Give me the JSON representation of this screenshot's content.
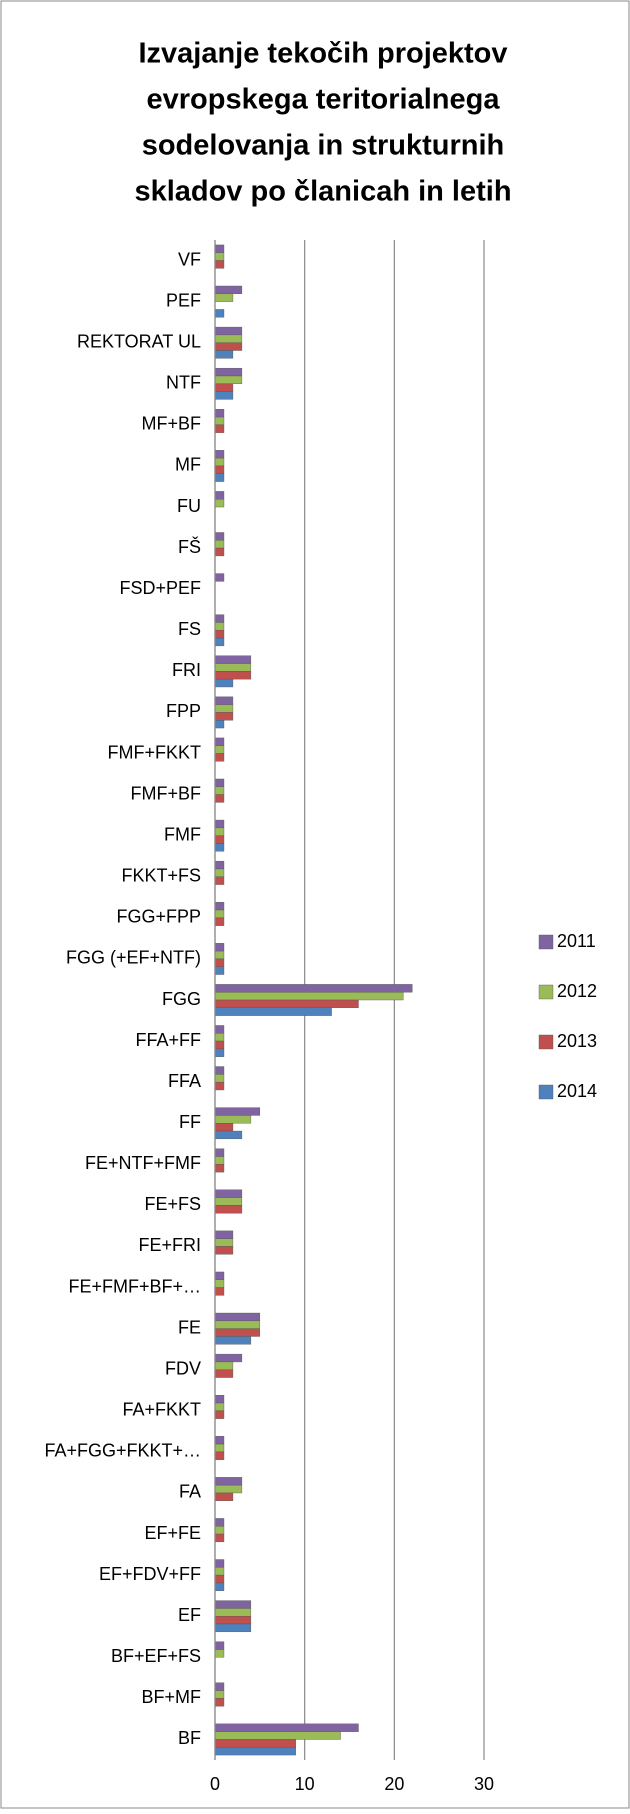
{
  "chart_data": {
    "type": "bar",
    "title": [
      "Izvajanje tekočih projektov",
      "evropskega teritorialnega",
      "sodelovanja in strukturnih",
      "skladov po članicah in letih"
    ],
    "categories": [
      "BF",
      "BF+MF",
      "BF+EF+FS",
      "EF",
      "EF+FDV+FF",
      "EF+FE",
      "FA",
      "FA+FGG+FKKT+…",
      "FA+FKKT",
      "FDV",
      "FE",
      "FE+FMF+BF+…",
      "FE+FRI",
      "FE+FS",
      "FE+NTF+FMF",
      "FF",
      "FFA",
      "FFA+FF",
      "FGG",
      "FGG (+EF+NTF)",
      "FGG+FPP",
      "FKKT+FS",
      "FMF",
      "FMF+BF",
      "FMF+FKKT",
      "FPP",
      "FRI",
      "FS",
      "FSD+PEF",
      "FŠ",
      "FU",
      "MF",
      "MF+BF",
      "NTF",
      "REKTORAT UL",
      "PEF",
      "VF"
    ],
    "series": [
      {
        "name": "2011",
        "color": "#8064a2",
        "values": [
          16,
          1,
          1,
          4,
          1,
          1,
          3,
          1,
          1,
          3,
          5,
          1,
          2,
          3,
          1,
          5,
          1,
          1,
          22,
          1,
          1,
          1,
          1,
          1,
          1,
          2,
          4,
          1,
          1,
          1,
          1,
          1,
          1,
          3,
          3,
          3,
          1
        ]
      },
      {
        "name": "2012",
        "color": "#9bbb59",
        "values": [
          14,
          1,
          1,
          4,
          1,
          1,
          3,
          1,
          1,
          2,
          5,
          1,
          2,
          3,
          1,
          4,
          1,
          1,
          21,
          1,
          1,
          1,
          1,
          1,
          1,
          2,
          4,
          1,
          0,
          1,
          1,
          1,
          1,
          3,
          3,
          2,
          1
        ]
      },
      {
        "name": "2013",
        "color": "#c0504d",
        "values": [
          9,
          1,
          0,
          4,
          1,
          1,
          2,
          1,
          1,
          2,
          5,
          1,
          2,
          3,
          1,
          2,
          1,
          1,
          16,
          1,
          1,
          1,
          1,
          1,
          1,
          2,
          4,
          1,
          0,
          1,
          0,
          1,
          1,
          2,
          3,
          0,
          1
        ]
      },
      {
        "name": "2014",
        "color": "#4f81bd",
        "values": [
          9,
          0,
          0,
          4,
          1,
          0,
          0,
          0,
          0,
          0,
          4,
          0,
          0,
          0,
          0,
          3,
          0,
          1,
          13,
          1,
          0,
          0,
          1,
          0,
          0,
          1,
          2,
          1,
          0,
          0,
          0,
          1,
          0,
          2,
          2,
          1,
          0
        ]
      }
    ],
    "xlim": [
      0,
      30
    ],
    "xticks": [
      0,
      10,
      20,
      30
    ],
    "grid": true,
    "legend": "right"
  }
}
